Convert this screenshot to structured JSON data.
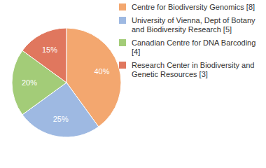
{
  "chart_data": {
    "type": "pie",
    "categories": [
      "Centre for Biodiversity Genomics [8]",
      "University of Vienna, Dept of Botany and Biodiversity Research [5]",
      "Canadian Centre for DNA Barcoding [4]",
      "Research Center in Biodiversity and Genetic Resources [3]"
    ],
    "values": [
      40,
      25,
      20,
      15
    ],
    "value_labels": [
      "40%",
      "25%",
      "20%",
      "15%"
    ],
    "data_labels": true,
    "colors": [
      "#F3A76F",
      "#9EB9E2",
      "#A3CC78",
      "#E0775E"
    ],
    "legend": "right"
  }
}
